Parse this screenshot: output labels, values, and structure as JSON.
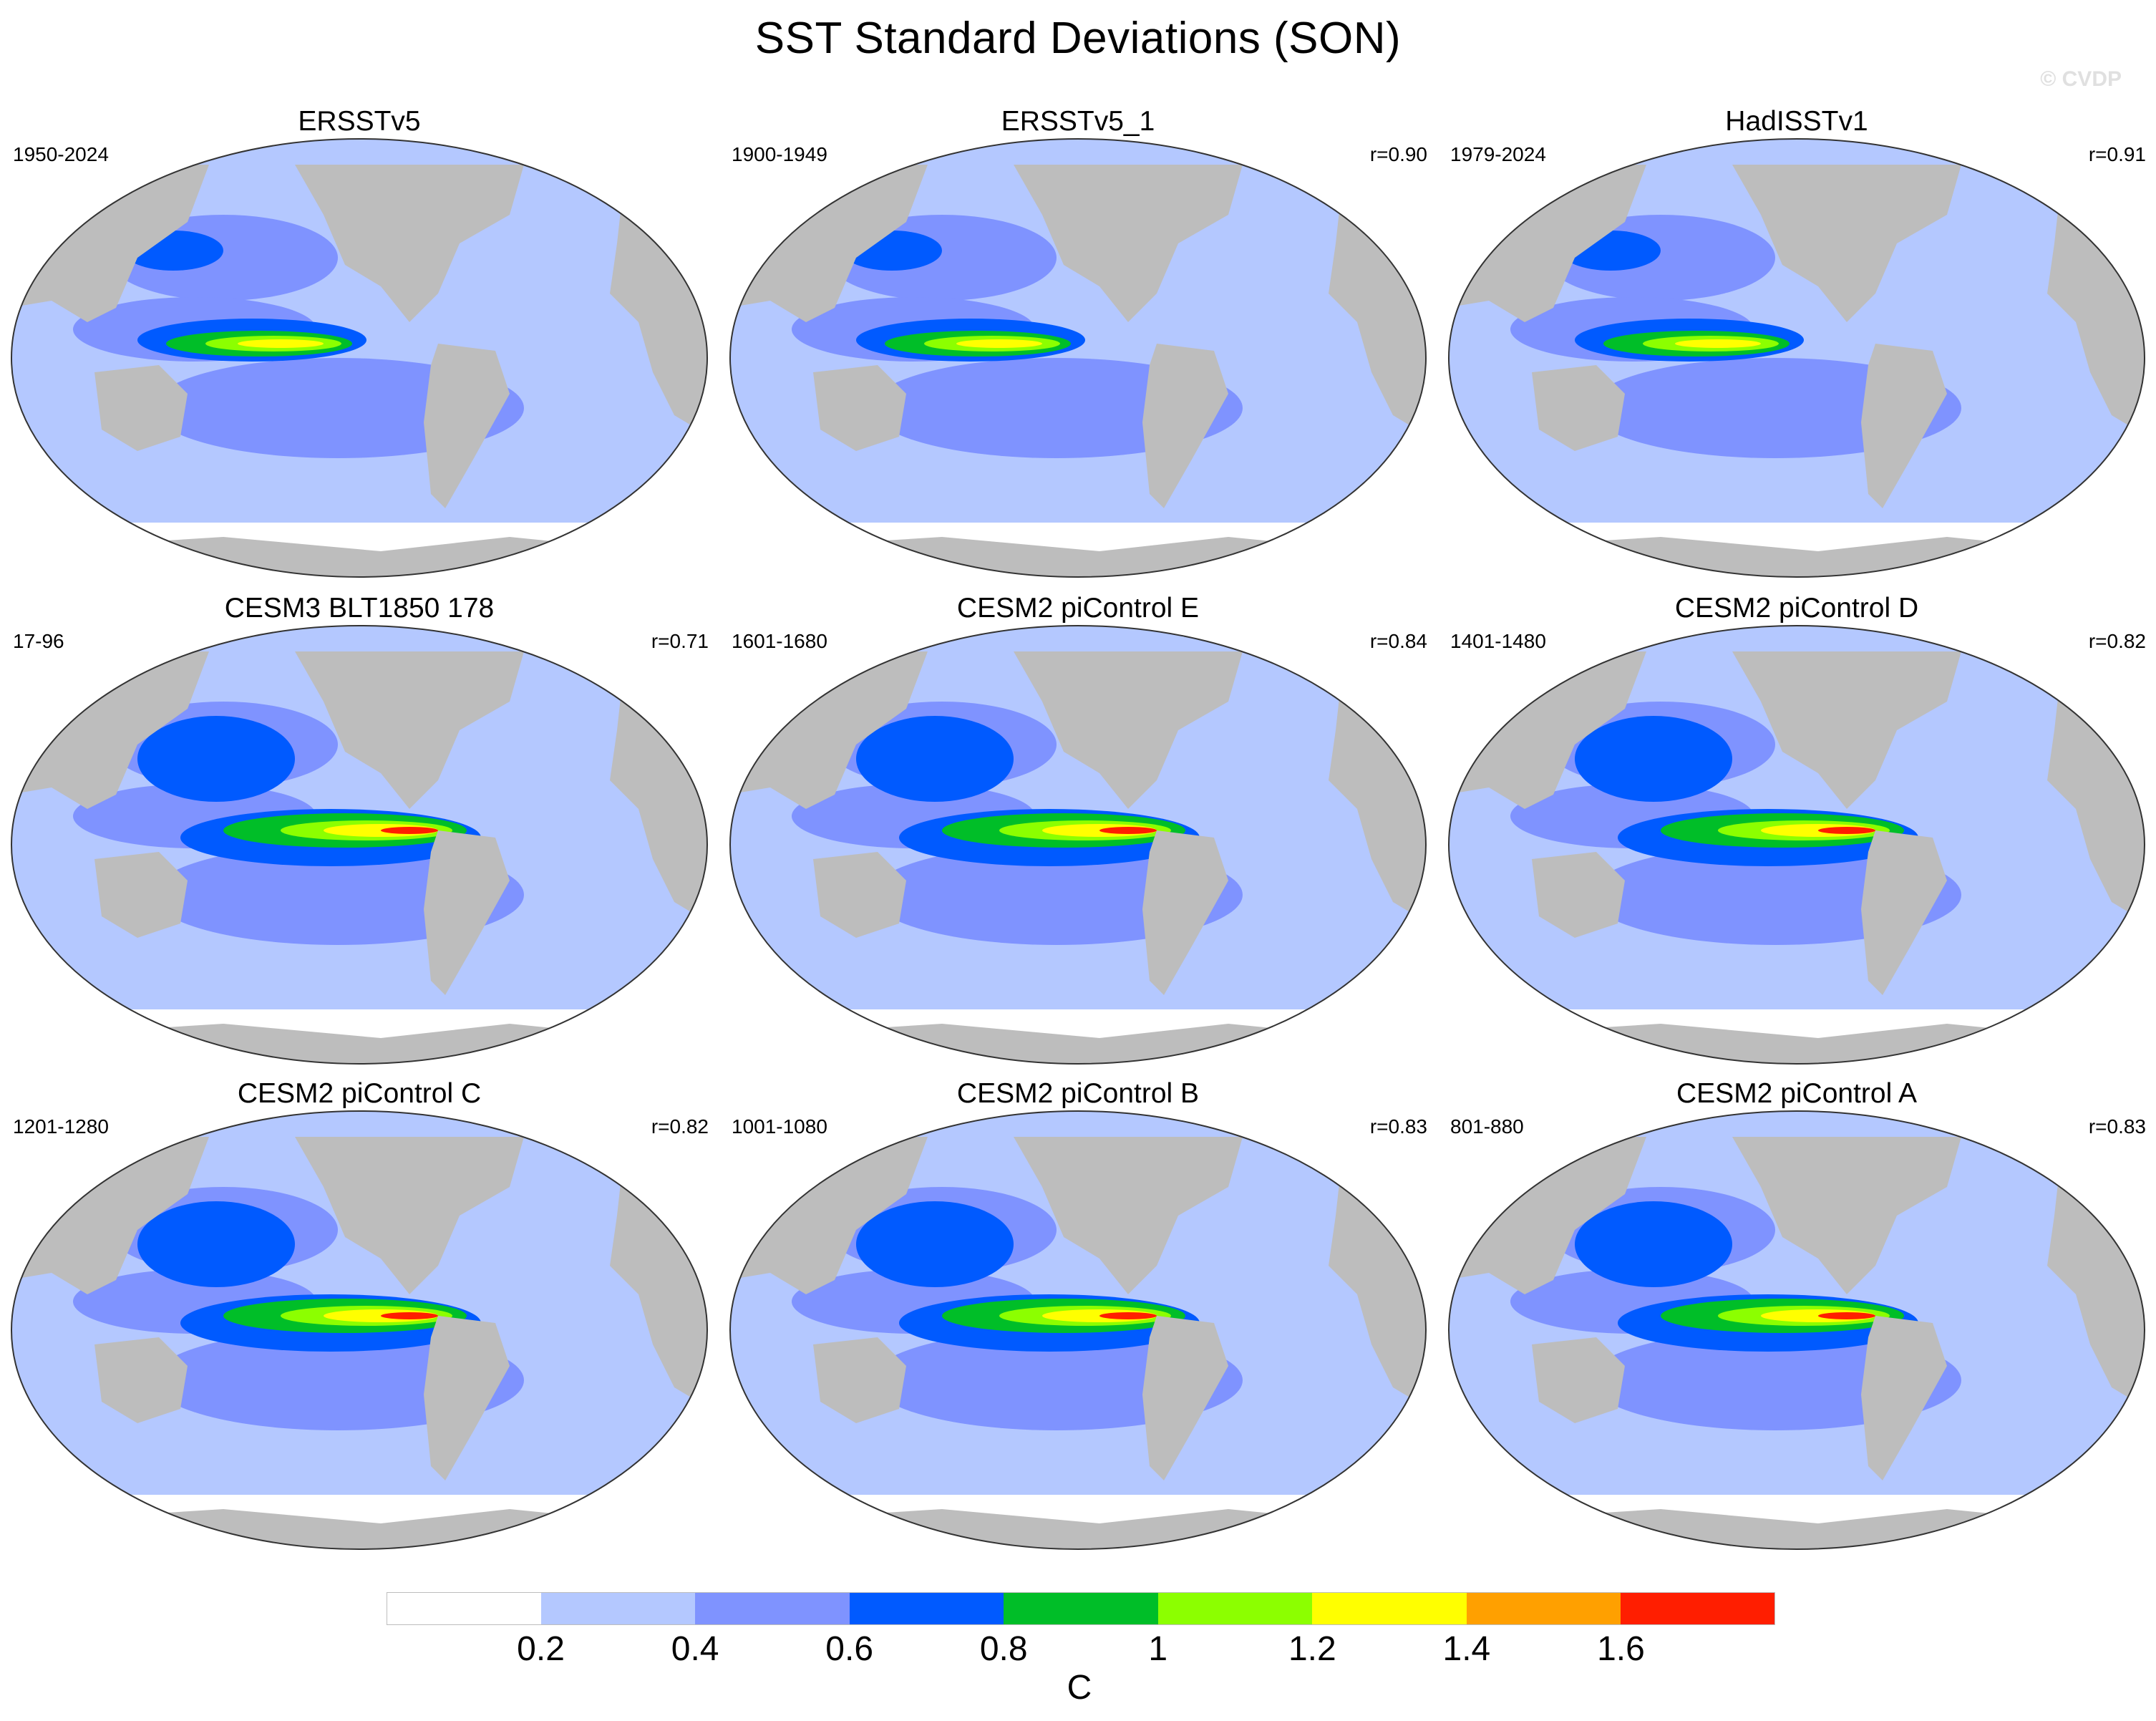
{
  "title": "SST Standard Deviations (SON)",
  "copyright": "© CVDP",
  "panels": [
    {
      "name": "ERSSTv5",
      "period": "1950-2024",
      "corr": ""
    },
    {
      "name": "ERSSTv5_1",
      "period": "1900-1949",
      "corr": "r=0.90"
    },
    {
      "name": "HadISSTv1",
      "period": "1979-2024",
      "corr": "r=0.91"
    },
    {
      "name": "CESM3 BLT1850 178",
      "period": "17-96",
      "corr": "r=0.71"
    },
    {
      "name": "CESM2 piControl E",
      "period": "1601-1680",
      "corr": "r=0.84"
    },
    {
      "name": "CESM2 piControl D",
      "period": "1401-1480",
      "corr": "r=0.82"
    },
    {
      "name": "CESM2 piControl C",
      "period": "1201-1280",
      "corr": "r=0.82"
    },
    {
      "name": "CESM2 piControl B",
      "period": "1001-1080",
      "corr": "r=0.83"
    },
    {
      "name": "CESM2 piControl A",
      "period": "801-880",
      "corr": "r=0.83"
    }
  ],
  "colorbar": {
    "units": "C",
    "labels": [
      "0.2",
      "0.4",
      "0.6",
      "0.8",
      "1",
      "1.2",
      "1.4",
      "1.6"
    ],
    "colors": [
      "#ffffff",
      "#b4c8ff",
      "#7f93ff",
      "#005aff",
      "#00be28",
      "#8cff00",
      "#ffff00",
      "#ffa000",
      "#ff1e00"
    ]
  },
  "land_color": "#bdbdbd",
  "ocean_base_color": "#b4c8ff"
}
